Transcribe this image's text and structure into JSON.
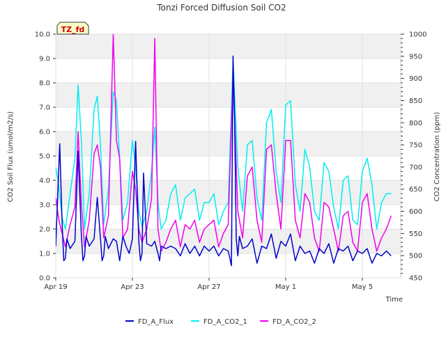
{
  "chart_data": {
    "type": "line",
    "title": "Tonzi Forced Diffusion Soil CO2",
    "site_badge": "TZ_fd",
    "xlabel": "Time",
    "ylabel_left": "CO2 Soil Flux (umol/m2/s)",
    "ylabel_right": "CO2 Concentration (ppm)",
    "xlim": [
      "2023-04-19",
      "2023-05-07"
    ],
    "ylim_left": [
      0,
      10
    ],
    "ylim_right": [
      450,
      1000
    ],
    "x_ticks": [
      {
        "date": "2023-04-19",
        "label": "Apr 19"
      },
      {
        "date": "2023-04-23",
        "label": "Apr 23"
      },
      {
        "date": "2023-04-27",
        "label": "Apr 27"
      },
      {
        "date": "2023-05-01",
        "label": "May 1"
      },
      {
        "date": "2023-05-05",
        "label": "May 5"
      }
    ],
    "y_ticks_left": [
      "0.0",
      "1.0",
      "2.0",
      "3.0",
      "4.0",
      "5.0",
      "6.0",
      "7.0",
      "8.0",
      "9.0",
      "10.0"
    ],
    "y_ticks_right": [
      "450",
      "500",
      "550",
      "600",
      "650",
      "700",
      "750",
      "800",
      "850",
      "900",
      "950",
      "1000"
    ],
    "grid": true,
    "background_bands": true,
    "legend_position": "bottom-center",
    "series": [
      {
        "name": "FD_A_Flux",
        "axis": "left",
        "color": "#0000cc",
        "x": [
          "2023-04-19T00:00",
          "2023-04-19T05:00",
          "2023-04-19T08:00",
          "2023-04-19T10:00",
          "2023-04-19T12:00",
          "2023-04-19T14:00",
          "2023-04-19T18:00",
          "2023-04-20T00:00",
          "2023-04-20T04:00",
          "2023-04-20T08:00",
          "2023-04-20T10:00",
          "2023-04-20T12:00",
          "2023-04-20T14:00",
          "2023-04-20T18:00",
          "2023-04-21T00:00",
          "2023-04-21T04:00",
          "2023-04-21T08:00",
          "2023-04-21T10:00",
          "2023-04-21T12:00",
          "2023-04-21T14:00",
          "2023-04-21T18:00",
          "2023-04-22T00:00",
          "2023-04-22T04:00",
          "2023-04-22T08:00",
          "2023-04-22T12:00",
          "2023-04-22T16:00",
          "2023-04-22T20:00",
          "2023-04-23T00:00",
          "2023-04-23T04:00",
          "2023-04-23T08:00",
          "2023-04-23T10:00",
          "2023-04-23T12:00",
          "2023-04-23T14:00",
          "2023-04-23T18:00",
          "2023-04-24T00:00",
          "2023-04-24T04:00",
          "2023-04-24T08:00",
          "2023-04-24T10:00",
          "2023-04-24T12:00",
          "2023-04-24T18:00",
          "2023-04-25T00:00",
          "2023-04-25T06:00",
          "2023-04-25T12:00",
          "2023-04-25T18:00",
          "2023-04-26T00:00",
          "2023-04-26T06:00",
          "2023-04-26T12:00",
          "2023-04-26T18:00",
          "2023-04-27T00:00",
          "2023-04-27T06:00",
          "2023-04-27T12:00",
          "2023-04-27T18:00",
          "2023-04-28T00:00",
          "2023-04-28T04:00",
          "2023-04-28T06:00",
          "2023-04-28T08:00",
          "2023-04-28T10:00",
          "2023-04-28T12:00",
          "2023-04-28T14:00",
          "2023-04-28T18:00",
          "2023-04-29T00:00",
          "2023-04-29T06:00",
          "2023-04-29T12:00",
          "2023-04-29T18:00",
          "2023-04-30T00:00",
          "2023-04-30T06:00",
          "2023-04-30T12:00",
          "2023-04-30T18:00",
          "2023-05-01T00:00",
          "2023-05-01T06:00",
          "2023-05-01T12:00",
          "2023-05-01T18:00",
          "2023-05-02T00:00",
          "2023-05-02T06:00",
          "2023-05-02T12:00",
          "2023-05-02T18:00",
          "2023-05-03T00:00",
          "2023-05-03T06:00",
          "2023-05-03T12:00",
          "2023-05-03T18:00",
          "2023-05-04T00:00",
          "2023-05-04T06:00",
          "2023-05-04T12:00",
          "2023-05-04T18:00",
          "2023-05-05T00:00",
          "2023-05-05T06:00",
          "2023-05-05T12:00",
          "2023-05-05T18:00",
          "2023-05-06T00:00",
          "2023-05-06T06:00",
          "2023-05-06T12:00"
        ],
        "values": [
          1.3,
          5.5,
          2.2,
          0.7,
          0.8,
          1.6,
          1.2,
          1.5,
          5.2,
          1.8,
          0.7,
          0.9,
          1.7,
          1.3,
          1.6,
          3.3,
          1.6,
          0.7,
          0.9,
          1.7,
          1.2,
          1.6,
          1.5,
          0.7,
          1.7,
          1.3,
          1.0,
          1.6,
          5.6,
          1.5,
          0.7,
          1.0,
          4.3,
          1.4,
          1.3,
          1.5,
          1.0,
          0.7,
          1.3,
          1.2,
          1.3,
          1.2,
          0.9,
          1.4,
          1.0,
          1.3,
          0.9,
          1.3,
          1.1,
          1.3,
          0.9,
          1.2,
          1.1,
          0.5,
          9.1,
          6.5,
          1.6,
          0.9,
          1.7,
          1.2,
          1.3,
          1.6,
          0.6,
          1.3,
          1.2,
          1.8,
          0.8,
          1.5,
          1.3,
          1.8,
          0.7,
          1.3,
          1.0,
          1.1,
          0.6,
          1.2,
          1.0,
          1.4,
          0.6,
          1.2,
          1.1,
          1.3,
          0.7,
          1.1,
          1.0,
          1.2,
          0.6,
          1.0,
          0.9,
          1.1,
          0.9
        ]
      },
      {
        "name": "FD_A_CO2_1",
        "axis": "right",
        "color": "#00eeee",
        "x": [
          "2023-04-19T00:00",
          "2023-04-19T04:00",
          "2023-04-19T08:00",
          "2023-04-19T12:00",
          "2023-04-19T18:00",
          "2023-04-20T00:00",
          "2023-04-20T04:00",
          "2023-04-20T08:00",
          "2023-04-20T12:00",
          "2023-04-20T18:00",
          "2023-04-21T00:00",
          "2023-04-21T04:00",
          "2023-04-21T08:00",
          "2023-04-21T12:00",
          "2023-04-21T18:00",
          "2023-04-22T00:00",
          "2023-04-22T04:00",
          "2023-04-22T08:00",
          "2023-04-22T12:00",
          "2023-04-22T18:00",
          "2023-04-23T00:00",
          "2023-04-23T04:00",
          "2023-04-23T08:00",
          "2023-04-23T12:00",
          "2023-04-23T18:00",
          "2023-04-24T00:00",
          "2023-04-24T04:00",
          "2023-04-24T08:00",
          "2023-04-24T12:00",
          "2023-04-24T18:00",
          "2023-04-25T00:00",
          "2023-04-25T06:00",
          "2023-04-25T12:00",
          "2023-04-25T18:00",
          "2023-04-26T00:00",
          "2023-04-26T06:00",
          "2023-04-26T12:00",
          "2023-04-26T18:00",
          "2023-04-27T00:00",
          "2023-04-27T06:00",
          "2023-04-27T12:00",
          "2023-04-27T18:00",
          "2023-04-28T00:00",
          "2023-04-28T06:00",
          "2023-04-28T12:00",
          "2023-04-28T18:00",
          "2023-04-29T00:00",
          "2023-04-29T06:00",
          "2023-04-29T12:00",
          "2023-04-29T18:00",
          "2023-04-30T00:00",
          "2023-04-30T06:00",
          "2023-04-30T12:00",
          "2023-04-30T18:00",
          "2023-05-01T00:00",
          "2023-05-01T06:00",
          "2023-05-01T12:00",
          "2023-05-01T18:00",
          "2023-05-02T00:00",
          "2023-05-02T06:00",
          "2023-05-02T12:00",
          "2023-05-02T18:00",
          "2023-05-03T00:00",
          "2023-05-03T06:00",
          "2023-05-03T12:00",
          "2023-05-03T18:00",
          "2023-05-04T00:00",
          "2023-05-04T06:00",
          "2023-05-04T12:00",
          "2023-05-04T18:00",
          "2023-05-05T00:00",
          "2023-05-05T06:00",
          "2023-05-05T12:00",
          "2023-05-05T18:00",
          "2023-05-06T00:00",
          "2023-05-06T06:00",
          "2023-05-06T12:00"
        ],
        "values": [
          700,
          655,
          585,
          560,
          640,
          720,
          885,
          760,
          560,
          640,
          830,
          860,
          750,
          570,
          650,
          870,
          850,
          720,
          580,
          620,
          760,
          700,
          600,
          565,
          600,
          690,
          790,
          620,
          560,
          580,
          640,
          660,
          580,
          630,
          640,
          650,
          580,
          620,
          620,
          640,
          570,
          600,
          620,
          940,
          700,
          600,
          750,
          760,
          630,
          580,
          800,
          830,
          690,
          620,
          840,
          850,
          660,
          600,
          740,
          700,
          600,
          580,
          710,
          690,
          610,
          560,
          670,
          680,
          580,
          570,
          690,
          720,
          660,
          560,
          620,
          640,
          640
        ]
      },
      {
        "name": "FD_A_CO2_2",
        "axis": "right",
        "color": "#ee00ee",
        "x": [
          "2023-04-19T00:00",
          "2023-04-19T04:00",
          "2023-04-19T08:00",
          "2023-04-19T12:00",
          "2023-04-19T18:00",
          "2023-04-20T00:00",
          "2023-04-20T04:00",
          "2023-04-20T08:00",
          "2023-04-20T12:00",
          "2023-04-20T18:00",
          "2023-04-21T00:00",
          "2023-04-21T04:00",
          "2023-04-21T08:00",
          "2023-04-21T12:00",
          "2023-04-21T18:00",
          "2023-04-22T00:00",
          "2023-04-22T04:00",
          "2023-04-22T08:00",
          "2023-04-22T12:00",
          "2023-04-22T18:00",
          "2023-04-23T00:00",
          "2023-04-23T04:00",
          "2023-04-23T08:00",
          "2023-04-23T12:00",
          "2023-04-23T18:00",
          "2023-04-24T00:00",
          "2023-04-24T04:00",
          "2023-04-24T08:00",
          "2023-04-24T12:00",
          "2023-04-24T18:00",
          "2023-04-25T00:00",
          "2023-04-25T06:00",
          "2023-04-25T12:00",
          "2023-04-25T18:00",
          "2023-04-26T00:00",
          "2023-04-26T06:00",
          "2023-04-26T12:00",
          "2023-04-26T18:00",
          "2023-04-27T00:00",
          "2023-04-27T06:00",
          "2023-04-27T12:00",
          "2023-04-27T18:00",
          "2023-04-28T00:00",
          "2023-04-28T06:00",
          "2023-04-28T12:00",
          "2023-04-28T18:00",
          "2023-04-29T00:00",
          "2023-04-29T06:00",
          "2023-04-29T12:00",
          "2023-04-29T18:00",
          "2023-04-30T00:00",
          "2023-04-30T06:00",
          "2023-04-30T12:00",
          "2023-04-30T18:00",
          "2023-05-01T00:00",
          "2023-05-01T06:00",
          "2023-05-01T12:00",
          "2023-05-01T18:00",
          "2023-05-02T00:00",
          "2023-05-02T06:00",
          "2023-05-02T12:00",
          "2023-05-02T18:00",
          "2023-05-03T00:00",
          "2023-05-03T06:00",
          "2023-05-03T12:00",
          "2023-05-03T18:00",
          "2023-05-04T00:00",
          "2023-05-04T06:00",
          "2023-05-04T12:00",
          "2023-05-04T18:00",
          "2023-05-05T00:00",
          "2023-05-05T06:00",
          "2023-05-05T12:00",
          "2023-05-05T18:00",
          "2023-05-06T00:00",
          "2023-05-06T06:00",
          "2023-05-06T12:00"
        ],
        "values": [
          630,
          580,
          550,
          520,
          570,
          610,
          780,
          620,
          520,
          580,
          730,
          750,
          700,
          540,
          590,
          1000,
          760,
          720,
          540,
          560,
          690,
          650,
          560,
          530,
          560,
          630,
          990,
          560,
          510,
          530,
          560,
          580,
          520,
          570,
          560,
          580,
          530,
          560,
          570,
          580,
          520,
          550,
          570,
          910,
          600,
          540,
          680,
          700,
          580,
          530,
          740,
          750,
          640,
          560,
          760,
          760,
          580,
          540,
          640,
          620,
          540,
          510,
          620,
          610,
          560,
          510,
          590,
          600,
          530,
          510,
          620,
          640,
          560,
          510,
          540,
          560,
          590
        ]
      }
    ]
  }
}
